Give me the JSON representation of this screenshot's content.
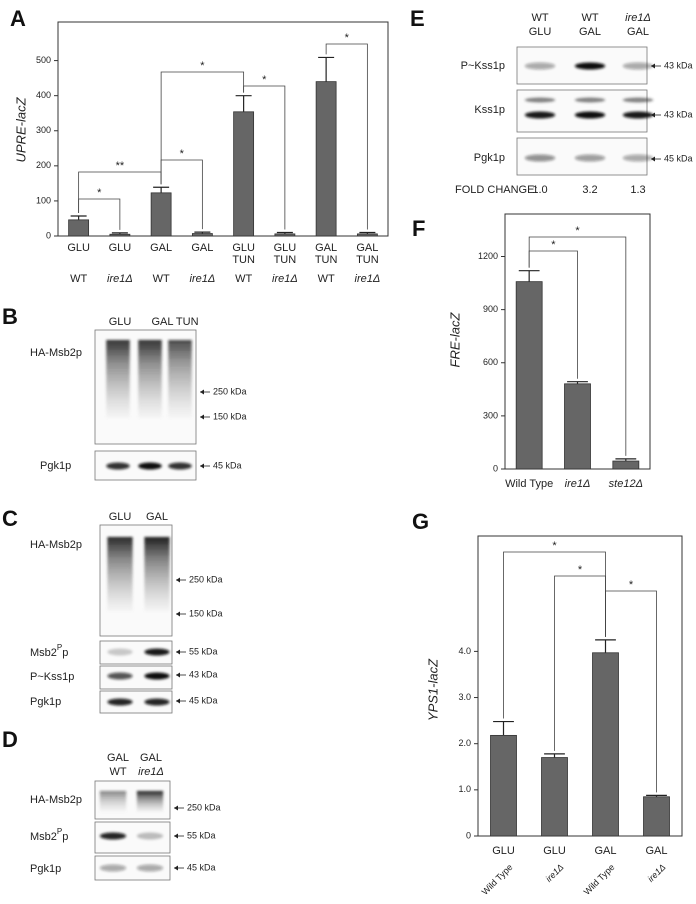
{
  "chart_data": [
    {
      "type": "bar",
      "panel": "A",
      "ylabel": "UPRE-lacZ",
      "categories": [
        "GLU",
        "GLU",
        "GAL",
        "GAL",
        "GLU",
        "GLU",
        "GAL",
        "GAL"
      ],
      "subcategories": [
        null,
        null,
        null,
        null,
        "TUN",
        "TUN",
        "TUN",
        "TUN"
      ],
      "genotypes": [
        "WT",
        "ire1Δ",
        "WT",
        "ire1Δ",
        "WT",
        "ire1Δ",
        "WT",
        "ire1Δ"
      ],
      "values": [
        46,
        5,
        123,
        7,
        354,
        6,
        440,
        6
      ],
      "errors": [
        11,
        4,
        16,
        4,
        46,
        4,
        69,
        4
      ],
      "color": "#666666",
      "ylim": [
        0,
        610
      ],
      "yticks": [
        0,
        100,
        200,
        300,
        400,
        500
      ],
      "annotations": [
        "*",
        "**",
        "*",
        "*",
        "*",
        "*"
      ]
    },
    {
      "type": "bar",
      "panel": "F",
      "ylabel": "FRE-lacZ",
      "categories": [
        "Wild Type",
        "ire1Δ",
        "ste12Δ"
      ],
      "values": [
        1058,
        481,
        45
      ],
      "errors": [
        62,
        12,
        12
      ],
      "color": "#666666",
      "ylim": [
        0,
        1440
      ],
      "yticks": [
        0,
        300,
        600,
        900,
        1200
      ],
      "annotations": [
        "*",
        "*"
      ]
    },
    {
      "type": "bar",
      "panel": "G",
      "ylabel": "YPS1-lacZ",
      "categories": [
        "GLU",
        "GLU",
        "GAL",
        "GAL"
      ],
      "genotypes": [
        "Wild Type",
        "ire1Δ",
        "Wild Type",
        "ire1Δ"
      ],
      "values": [
        2.18,
        1.7,
        3.97,
        0.85
      ],
      "errors": [
        0.3,
        0.08,
        0.28,
        0.03
      ],
      "color": "#666666",
      "ylim": [
        0,
        6.5
      ],
      "yticks": [
        0,
        {
          "value": 1,
          "label": "1.0"
        },
        {
          "value": 2,
          "label": "2.0"
        },
        {
          "value": 3,
          "label": "3.0"
        },
        {
          "value": 4,
          "label": "4.0"
        }
      ],
      "annotations": [
        "*",
        "*",
        "*"
      ]
    }
  ],
  "blots": [
    {
      "panel": "B",
      "lanes": [
        [
          "GLU"
        ],
        [
          "GAL TUN"
        ]
      ],
      "rows": [
        {
          "label": "HA-Msb2p",
          "markers": [
            "250 kDa",
            "150 kDa"
          ]
        },
        {
          "label": "Pgk1p",
          "markers": [
            "45 kDa"
          ]
        }
      ]
    },
    {
      "panel": "C",
      "lanes": [
        [
          "GLU"
        ],
        [
          "GAL"
        ]
      ],
      "rows": [
        {
          "label": "HA-Msb2p",
          "markers": [
            "250 kDa",
            "150 kDa"
          ]
        },
        {
          "label": "Msb2",
          "label_sup": "P",
          "label_end": "p",
          "markers": [
            "55 kDa"
          ]
        },
        {
          "label": "P~Kss1p",
          "markers": [
            "43 kDa"
          ]
        },
        {
          "label": "Pgk1p",
          "markers": [
            "45 kDa"
          ]
        }
      ]
    },
    {
      "panel": "D",
      "lanes": [
        [
          "GAL",
          "WT"
        ],
        [
          "GAL",
          "ire1Δ"
        ]
      ],
      "rows": [
        {
          "label": "HA-Msb2p",
          "markers": [
            "250 kDa"
          ]
        },
        {
          "label": "Msb2",
          "label_sup": "P",
          "label_end": "p",
          "markers": [
            "55 kDa"
          ]
        },
        {
          "label": "Pgk1p",
          "markers": [
            "45 kDa"
          ]
        }
      ]
    },
    {
      "panel": "E",
      "lanes": [
        [
          "WT",
          "GLU"
        ],
        [
          "WT",
          "GAL"
        ],
        [
          "ire1Δ",
          "GAL"
        ]
      ],
      "rows": [
        {
          "label": "P~Kss1p",
          "markers": [
            "43 kDa"
          ]
        },
        {
          "label": "Kss1p",
          "markers": [
            "43 kDa"
          ]
        },
        {
          "label": "Pgk1p",
          "markers": [
            "45 kDa"
          ]
        }
      ],
      "fold_change_label": "FOLD CHANGE:",
      "fold_change": [
        "1.0",
        "3.2",
        "1.3"
      ]
    }
  ]
}
